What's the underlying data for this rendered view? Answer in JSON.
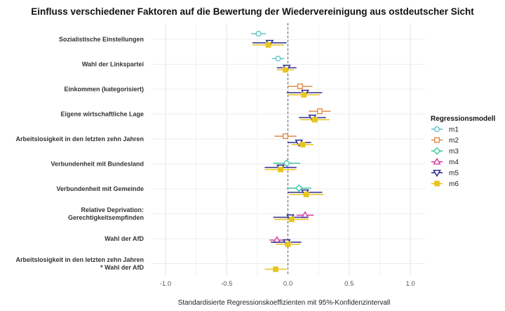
{
  "chart_data": {
    "type": "scatter",
    "title": "Einfluss verschiedener Faktoren auf die Bewertung der Wiedervereinigung aus ostdeutscher Sicht",
    "xlabel": "Standardisierte Regressionskoeffizienten mit 95%-Konfidenzintervall",
    "ylabel": "",
    "xlim": [
      -1.12,
      1.12
    ],
    "xticks": [
      -1.0,
      -0.5,
      0.0,
      0.5,
      1.0
    ],
    "xtick_labels": [
      "-1.0",
      "-0.5",
      "0.0",
      "0.5",
      "1.0"
    ],
    "reference_line": 0.0,
    "grid": true,
    "legend_title": "Regressionsmodell",
    "legend_position": "right",
    "categories": [
      {
        "id": "sozialistisch",
        "lines": [
          "Sozialistische Einstellungen"
        ]
      },
      {
        "id": "linkspartei",
        "lines": [
          "Wahl der Linkspartei"
        ]
      },
      {
        "id": "einkommen",
        "lines": [
          "Einkommen (kategorisiert)"
        ]
      },
      {
        "id": "wirtschaft",
        "lines": [
          "Eigene wirtschaftliche Lage"
        ]
      },
      {
        "id": "arbeitslos",
        "lines": [
          "Arbeitslosigkeit in den letzten zehn Jahren"
        ]
      },
      {
        "id": "bundesland",
        "lines": [
          "Verbundenheit mit Bundesland"
        ]
      },
      {
        "id": "gemeinde",
        "lines": [
          "Verbundenheit mit Gemeinde"
        ]
      },
      {
        "id": "deprivation",
        "lines": [
          "Relative Deprivation:",
          "Gerechtigkeitsempfinden"
        ]
      },
      {
        "id": "afd",
        "lines": [
          "Wahl der AfD"
        ]
      },
      {
        "id": "interaktion",
        "lines": [
          "Arbeitslosigkeit in den letzten zehn Jahren",
          "* Wahl der AfD"
        ]
      }
    ],
    "series": [
      {
        "name": "m1",
        "color": "#62c3c9",
        "marker": "circle",
        "points": [
          {
            "category": "sozialistisch",
            "est": -0.24,
            "lo": -0.3,
            "hi": -0.18
          },
          {
            "category": "linkspartei",
            "est": -0.08,
            "lo": -0.13,
            "hi": -0.03
          }
        ]
      },
      {
        "name": "m2",
        "color": "#e08b47",
        "marker": "square",
        "points": [
          {
            "category": "einkommen",
            "est": 0.1,
            "lo": 0.0,
            "hi": 0.2
          },
          {
            "category": "wirtschaft",
            "est": 0.26,
            "lo": 0.17,
            "hi": 0.35
          },
          {
            "category": "arbeitslos",
            "est": -0.02,
            "lo": -0.11,
            "hi": 0.07
          }
        ]
      },
      {
        "name": "m3",
        "color": "#3cc8a0",
        "marker": "diamond",
        "points": [
          {
            "category": "bundesland",
            "est": -0.01,
            "lo": -0.12,
            "hi": 0.1
          },
          {
            "category": "gemeinde",
            "est": 0.09,
            "lo": -0.01,
            "hi": 0.19
          }
        ]
      },
      {
        "name": "m4",
        "color": "#d63a9e",
        "marker": "triangle-up",
        "points": [
          {
            "category": "deprivation",
            "est": 0.14,
            "lo": 0.07,
            "hi": 0.21
          },
          {
            "category": "afd",
            "est": -0.09,
            "lo": -0.15,
            "hi": -0.03
          }
        ]
      },
      {
        "name": "m5",
        "color": "#2e2f8f",
        "marker": "triangle-down",
        "points": [
          {
            "category": "sozialistisch",
            "est": -0.15,
            "lo": -0.29,
            "hi": -0.01
          },
          {
            "category": "linkspartei",
            "est": -0.01,
            "lo": -0.09,
            "hi": 0.07
          },
          {
            "category": "einkommen",
            "est": 0.14,
            "lo": -0.01,
            "hi": 0.28
          },
          {
            "category": "wirtschaft",
            "est": 0.2,
            "lo": 0.09,
            "hi": 0.31
          },
          {
            "category": "arbeitslos",
            "est": 0.09,
            "lo": 0.0,
            "hi": 0.19
          },
          {
            "category": "bundesland",
            "est": -0.06,
            "lo": -0.19,
            "hi": 0.07
          },
          {
            "category": "gemeinde",
            "est": 0.14,
            "lo": 0.0,
            "hi": 0.28
          },
          {
            "category": "deprivation",
            "est": 0.02,
            "lo": -0.12,
            "hi": 0.16
          },
          {
            "category": "afd",
            "est": -0.01,
            "lo": -0.14,
            "hi": 0.11
          }
        ]
      },
      {
        "name": "m6",
        "color": "#e8c41f",
        "marker": "square-filled",
        "points": [
          {
            "category": "sozialistisch",
            "est": -0.16,
            "lo": -0.29,
            "hi": -0.03
          },
          {
            "category": "linkspartei",
            "est": -0.02,
            "lo": -0.09,
            "hi": 0.05
          },
          {
            "category": "einkommen",
            "est": 0.13,
            "lo": 0.0,
            "hi": 0.26
          },
          {
            "category": "wirtschaft",
            "est": 0.22,
            "lo": 0.1,
            "hi": 0.34
          },
          {
            "category": "arbeitslos",
            "est": 0.12,
            "lo": 0.03,
            "hi": 0.21
          },
          {
            "category": "bundesland",
            "est": -0.06,
            "lo": -0.19,
            "hi": 0.07
          },
          {
            "category": "gemeinde",
            "est": 0.15,
            "lo": 0.01,
            "hi": 0.29
          },
          {
            "category": "deprivation",
            "est": 0.03,
            "lo": -0.11,
            "hi": 0.17
          },
          {
            "category": "afd",
            "est": 0.0,
            "lo": -0.1,
            "hi": 0.1
          },
          {
            "category": "interaktion",
            "est": -0.1,
            "lo": -0.19,
            "hi": -0.01
          }
        ]
      }
    ]
  }
}
